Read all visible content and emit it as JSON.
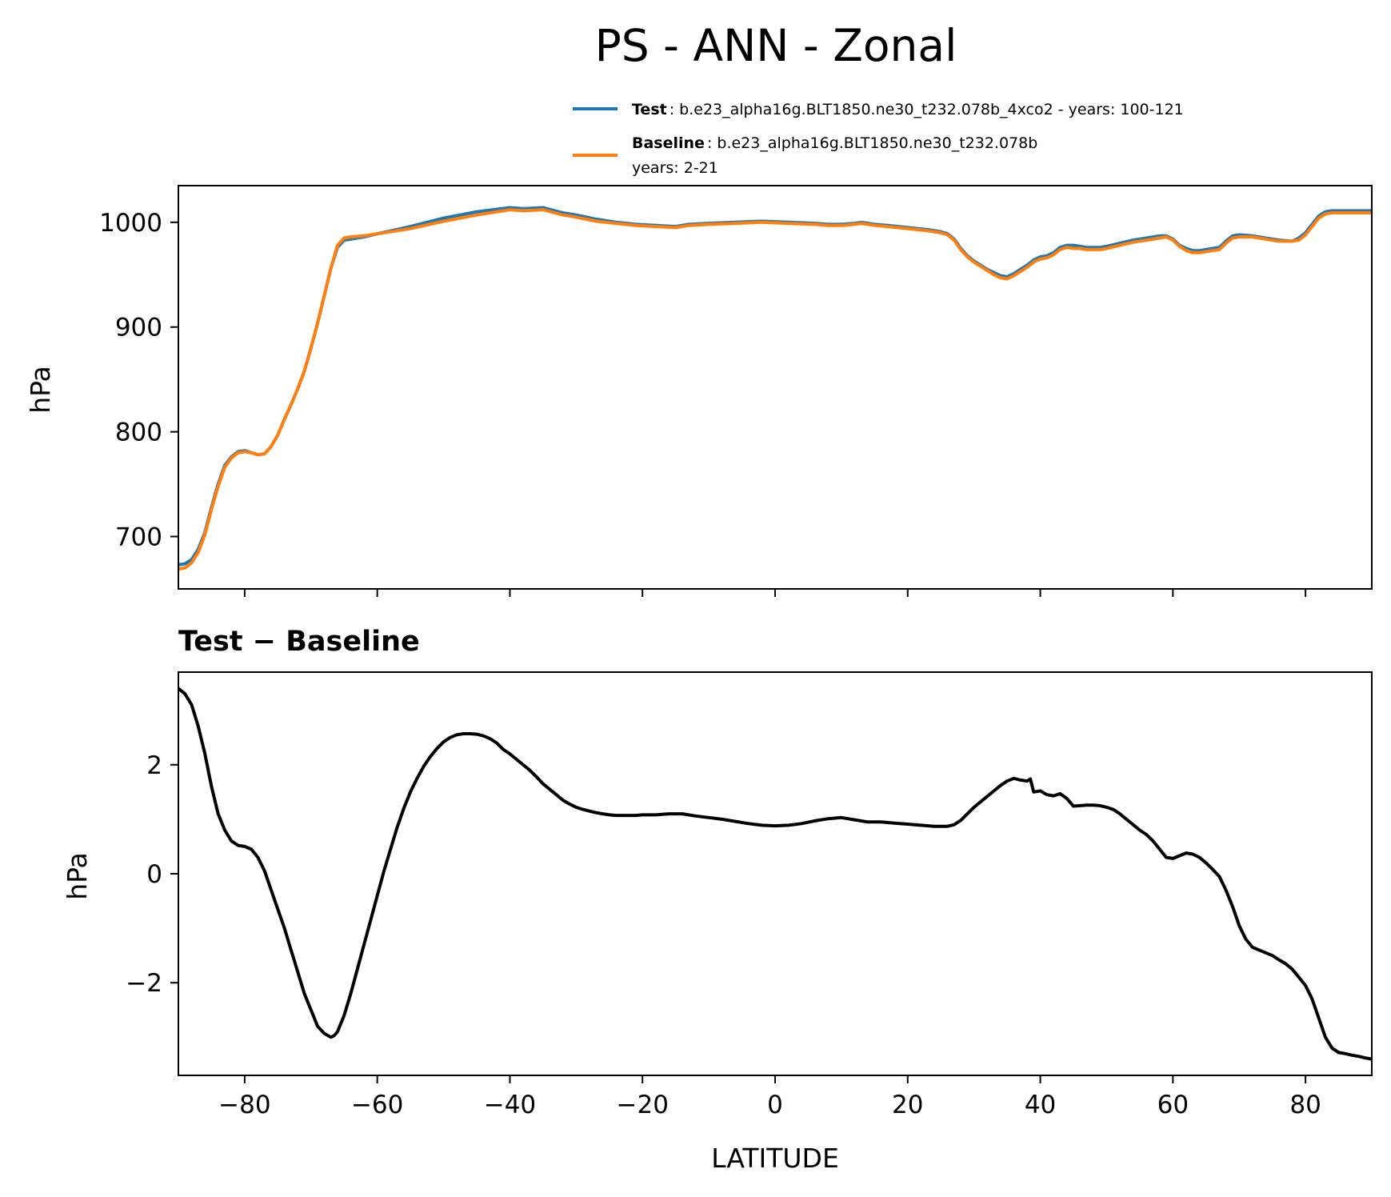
{
  "figure": {
    "title": "PS - ANN - Zonal"
  },
  "chart_data": [
    {
      "type": "line",
      "ylabel": "hPa",
      "xlim": [
        -90,
        90
      ],
      "ylim": [
        650,
        1035
      ],
      "xticks": [
        -80,
        -60,
        -40,
        -20,
        0,
        20,
        40,
        60,
        80
      ],
      "yticks": [
        700,
        800,
        900,
        1000
      ],
      "grid": false,
      "legend_position": "top-right",
      "legend": [
        {
          "bold": "Test",
          "text": ": b.e23_alpha16g.BLT1850.ne30_t232.078b_4xco2 - years: 100-121",
          "color": "#1f77b4"
        },
        {
          "bold": "Baseline",
          "text": ": b.e23_alpha16g.BLT1850.ne30_t232.078b",
          "text2": "years: 2-21",
          "color": "#ff7f0e"
        }
      ],
      "series": [
        {
          "name": "Test",
          "color": "#1f77b4",
          "x": [
            -90,
            -89,
            -88,
            -87,
            -86,
            -85,
            -84,
            -83,
            -82,
            -81,
            -80,
            -79,
            -78,
            -77,
            -76,
            -75,
            -74,
            -73,
            -72,
            -71,
            -70,
            -69,
            -68,
            -67,
            -66,
            -65,
            -64,
            -62,
            -60,
            -55,
            -50,
            -45,
            -40,
            -38,
            -35,
            -32,
            -30,
            -27,
            -24,
            -21,
            -18,
            -15,
            -13,
            -10,
            -6,
            -2,
            2,
            6,
            8,
            10,
            12,
            13,
            15,
            17,
            20,
            23,
            25,
            26,
            27,
            28,
            29,
            30,
            31,
            32,
            33,
            34,
            35,
            36,
            37,
            38,
            39,
            40,
            41,
            42,
            43,
            44,
            45,
            46,
            47,
            48,
            49,
            50,
            52,
            54,
            56,
            58,
            59,
            60,
            61,
            62,
            63,
            64,
            65,
            66,
            67,
            68,
            69,
            70,
            72,
            74,
            76,
            78,
            79,
            80,
            81,
            82,
            83,
            84,
            86,
            88,
            90
          ],
          "values": [
            673,
            674,
            678,
            688,
            704,
            728,
            750,
            768,
            776,
            781,
            782,
            780,
            778,
            779,
            786,
            797,
            812,
            826,
            841,
            858,
            880,
            904,
            930,
            956,
            976,
            983,
            984,
            986,
            989,
            996,
            1004,
            1010,
            1014,
            1013,
            1014,
            1009,
            1007,
            1003,
            1000,
            998,
            997,
            996,
            998,
            999,
            1000,
            1001,
            1000,
            999,
            998,
            998,
            999,
            1000,
            998,
            997,
            995,
            993,
            991,
            989,
            984,
            975,
            968,
            963,
            959,
            955,
            952,
            949,
            948,
            951,
            955,
            959,
            964,
            967,
            968,
            971,
            976,
            978,
            978,
            977,
            976,
            976,
            976,
            977,
            980,
            983,
            985,
            987,
            987,
            984,
            978,
            975,
            973,
            973,
            974,
            975,
            976,
            982,
            987,
            988,
            987,
            985,
            983,
            982,
            985,
            990,
            998,
            1006,
            1010,
            1011,
            1011,
            1011,
            1011
          ]
        },
        {
          "name": "Baseline",
          "color": "#ff7f0e",
          "x": [
            -90,
            -89,
            -88,
            -87,
            -86,
            -85,
            -84,
            -83,
            -82,
            -81,
            -80,
            -79,
            -78,
            -77,
            -76,
            -75,
            -74,
            -73,
            -72,
            -71,
            -70,
            -69,
            -68,
            -67,
            -66,
            -65,
            -64,
            -62,
            -60,
            -55,
            -50,
            -45,
            -40,
            -38,
            -35,
            -32,
            -30,
            -27,
            -24,
            -21,
            -18,
            -15,
            -13,
            -10,
            -6,
            -2,
            2,
            6,
            8,
            10,
            12,
            13,
            15,
            17,
            20,
            23,
            25,
            26,
            27,
            28,
            29,
            30,
            31,
            32,
            33,
            34,
            35,
            36,
            37,
            38,
            39,
            40,
            41,
            42,
            43,
            44,
            45,
            46,
            47,
            48,
            49,
            50,
            52,
            54,
            56,
            58,
            59,
            60,
            61,
            62,
            63,
            64,
            65,
            66,
            67,
            68,
            69,
            70,
            72,
            74,
            76,
            78,
            79,
            80,
            81,
            82,
            83,
            84,
            86,
            88,
            90
          ],
          "values": [
            669,
            670,
            675,
            685,
            702,
            726,
            748,
            766,
            775,
            780,
            781,
            780,
            778,
            779,
            786,
            797,
            812,
            826,
            841,
            858,
            880,
            904,
            930,
            956,
            978,
            985,
            986,
            987,
            989,
            994,
            1001,
            1007,
            1012,
            1011,
            1012,
            1007,
            1005,
            1001,
            999,
            997,
            996,
            995,
            997,
            998,
            999,
            1000,
            999,
            998,
            997,
            997,
            998,
            999,
            997,
            996,
            994,
            992,
            990,
            988,
            983,
            974,
            967,
            962,
            958,
            954,
            950,
            947,
            946,
            949,
            953,
            957,
            962,
            965,
            966,
            969,
            974,
            976,
            975,
            975,
            974,
            974,
            974,
            975,
            978,
            981,
            983,
            985,
            986,
            983,
            977,
            973,
            971,
            971,
            972,
            973,
            974,
            980,
            985,
            986,
            986,
            984,
            982,
            982,
            983,
            988,
            996,
            1004,
            1008,
            1009,
            1009,
            1009,
            1009
          ]
        }
      ]
    },
    {
      "type": "line",
      "title": "Test − Baseline",
      "xlabel": "LATITUDE",
      "ylabel": "hPa",
      "xlim": [
        -90,
        90
      ],
      "ylim": [
        -3.7,
        3.7
      ],
      "xticks": [
        -80,
        -60,
        -40,
        -20,
        0,
        20,
        40,
        60,
        80
      ],
      "xtick_labels": [
        "−80",
        "−60",
        "−40",
        "−20",
        "0",
        "20",
        "40",
        "60",
        "80"
      ],
      "yticks": [
        -2,
        0,
        2
      ],
      "ytick_labels": [
        "−2",
        "0",
        "2"
      ],
      "grid": false,
      "series": [
        {
          "color": "#000000",
          "x": [
            -90,
            -89,
            -88,
            -87,
            -86,
            -85,
            -84,
            -83,
            -82,
            -81,
            -80,
            -79,
            -78,
            -77,
            -76,
            -75,
            -74,
            -73,
            -72,
            -71,
            -70,
            -69,
            -68,
            -67,
            -66.5,
            -66,
            -65,
            -64,
            -63,
            -62,
            -61,
            -60,
            -59,
            -58,
            -57,
            -56,
            -55,
            -54,
            -53,
            -52,
            -51,
            -50,
            -49,
            -48,
            -47,
            -46,
            -45,
            -44,
            -43,
            -42,
            -41,
            -40,
            -39,
            -38,
            -37,
            -36,
            -35,
            -34,
            -33,
            -32,
            -31,
            -30,
            -29,
            -28,
            -27,
            -26,
            -25,
            -24,
            -23,
            -22,
            -21,
            -20,
            -18,
            -16,
            -14,
            -12,
            -10,
            -8,
            -6,
            -4,
            -2,
            0,
            2,
            4,
            6,
            8,
            10,
            12,
            14,
            16,
            18,
            20,
            22,
            24,
            26,
            27,
            28,
            29,
            30,
            31,
            32,
            33,
            34,
            35,
            36,
            37,
            38,
            38.5,
            39,
            40,
            41,
            42,
            43,
            44,
            45,
            46,
            47,
            48,
            49,
            50,
            51,
            52,
            53,
            54,
            55,
            56,
            57,
            58,
            59,
            60,
            61,
            62,
            63,
            64,
            65,
            66,
            67,
            68,
            69,
            70,
            71,
            72,
            73,
            74,
            75,
            76,
            77,
            78,
            79,
            80,
            81,
            82,
            83,
            84,
            85,
            86,
            87,
            88,
            89,
            90
          ],
          "values": [
            3.4,
            3.3,
            3.1,
            2.7,
            2.2,
            1.6,
            1.1,
            0.8,
            0.6,
            0.52,
            0.5,
            0.45,
            0.3,
            0.05,
            -0.3,
            -0.65,
            -1.0,
            -1.4,
            -1.8,
            -2.2,
            -2.5,
            -2.8,
            -2.93,
            -3.0,
            -2.97,
            -2.9,
            -2.6,
            -2.2,
            -1.75,
            -1.3,
            -0.85,
            -0.4,
            0.05,
            0.45,
            0.85,
            1.2,
            1.5,
            1.75,
            1.97,
            2.15,
            2.3,
            2.42,
            2.5,
            2.55,
            2.57,
            2.57,
            2.56,
            2.53,
            2.48,
            2.4,
            2.28,
            2.2,
            2.1,
            2.0,
            1.9,
            1.78,
            1.65,
            1.55,
            1.45,
            1.35,
            1.28,
            1.22,
            1.18,
            1.15,
            1.12,
            1.1,
            1.08,
            1.07,
            1.07,
            1.07,
            1.07,
            1.08,
            1.08,
            1.1,
            1.1,
            1.06,
            1.03,
            1.0,
            0.96,
            0.92,
            0.89,
            0.88,
            0.89,
            0.92,
            0.97,
            1.01,
            1.03,
            0.99,
            0.95,
            0.95,
            0.93,
            0.91,
            0.89,
            0.87,
            0.87,
            0.9,
            0.98,
            1.1,
            1.22,
            1.32,
            1.42,
            1.52,
            1.62,
            1.7,
            1.75,
            1.72,
            1.7,
            1.74,
            1.5,
            1.52,
            1.45,
            1.43,
            1.47,
            1.38,
            1.24,
            1.25,
            1.26,
            1.26,
            1.25,
            1.22,
            1.18,
            1.1,
            1.0,
            0.9,
            0.8,
            0.72,
            0.6,
            0.45,
            0.3,
            0.28,
            0.33,
            0.38,
            0.36,
            0.3,
            0.2,
            0.08,
            -0.05,
            -0.3,
            -0.6,
            -0.95,
            -1.2,
            -1.35,
            -1.4,
            -1.45,
            -1.5,
            -1.58,
            -1.65,
            -1.75,
            -1.9,
            -2.05,
            -2.3,
            -2.65,
            -3.0,
            -3.2,
            -3.28,
            -3.3,
            -3.33,
            -3.35,
            -3.38,
            -3.4
          ]
        }
      ]
    }
  ]
}
